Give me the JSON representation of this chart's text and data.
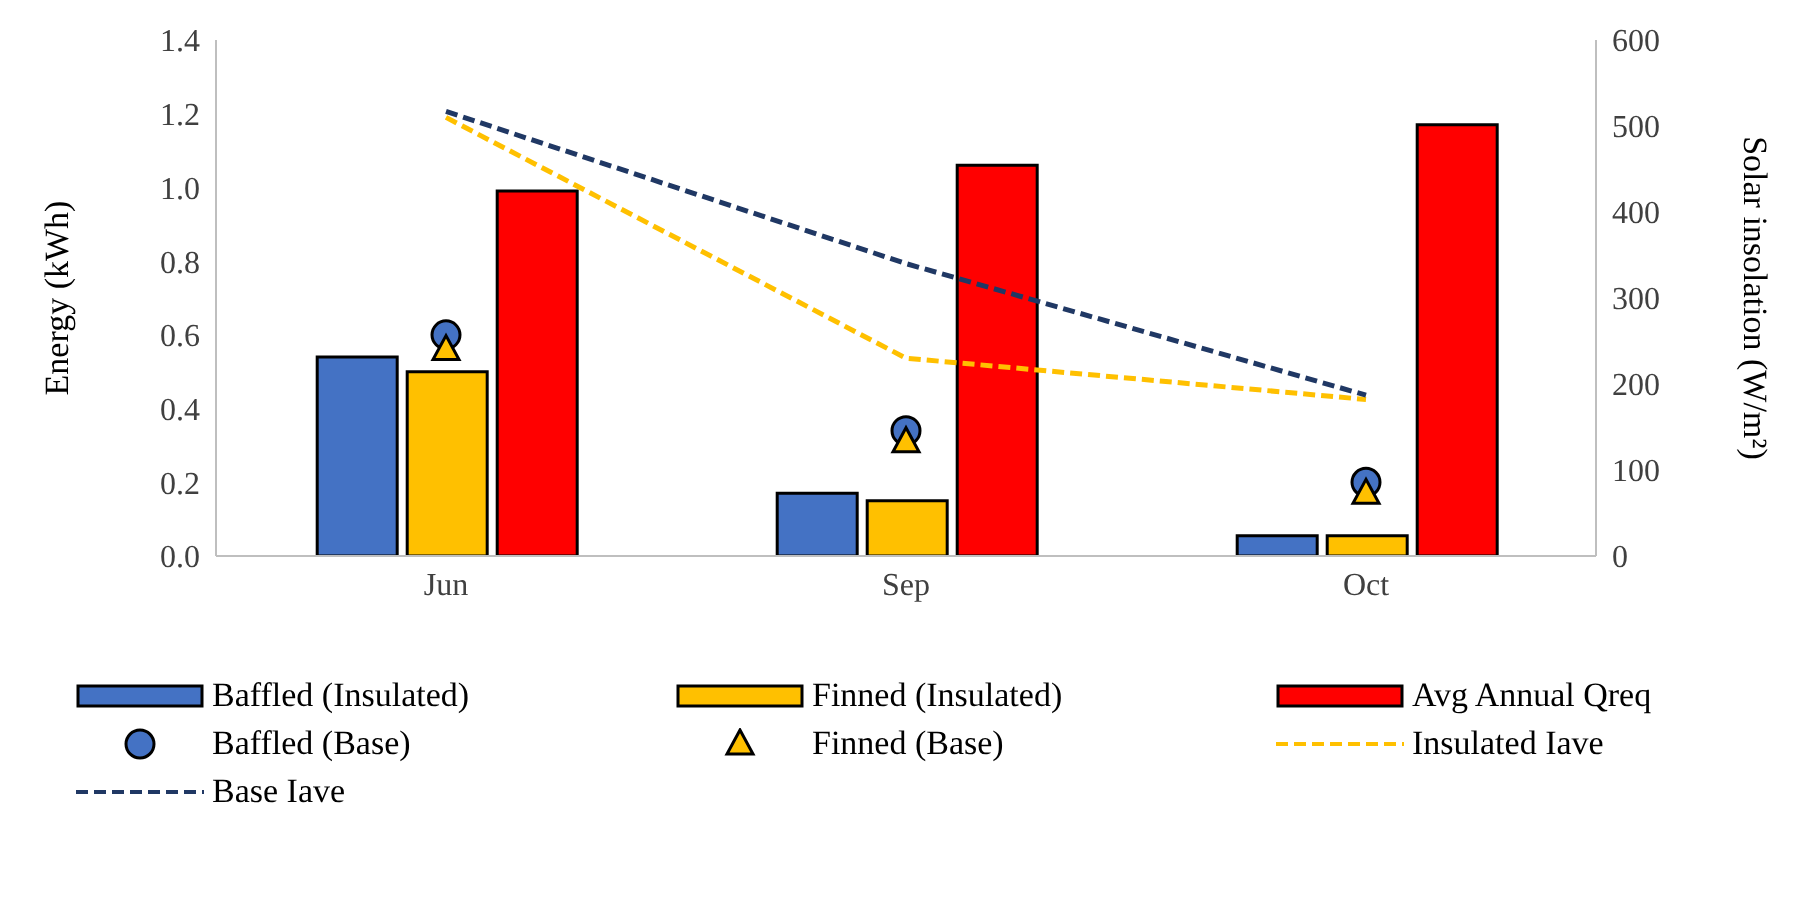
{
  "chart_data": {
    "type": "bar",
    "ylabel": "Energy  (kWh)",
    "y2label": "Solar insolation  (W/m²)",
    "categories": [
      "Jun",
      "Sep",
      "Oct"
    ],
    "series": [
      {
        "name": "Baffled (Insulated)",
        "color": "#4472c4",
        "values": [
          0.54,
          0.17,
          0.055
        ]
      },
      {
        "name": "Finned (Insulated)",
        "color": "#ffc000",
        "values": [
          0.5,
          0.15,
          0.055
        ]
      },
      {
        "name": "Avg Annual Qreq",
        "color": "#ff0000",
        "values": [
          0.99,
          1.06,
          1.17
        ]
      },
      {
        "name": "Baffled (Base)",
        "type": "scatter",
        "marker": "circle",
        "color": "#4472c4",
        "values": [
          0.6,
          0.34,
          0.2
        ]
      },
      {
        "name": "Finned (Base)",
        "type": "scatter",
        "marker": "triangle",
        "color": "#ffc000",
        "values": [
          0.56,
          0.31,
          0.17
        ]
      },
      {
        "name": "Insulated Iave",
        "type": "line",
        "axis": "y2",
        "line_style": "dashed",
        "color": "#ffc000",
        "values": [
          510,
          230,
          182
        ]
      },
      {
        "name": "Base Iave",
        "type": "line",
        "axis": "y2",
        "line_style": "dashed",
        "color": "#203864",
        "values": [
          517,
          340,
          187
        ]
      }
    ],
    "ylim": [
      0,
      1.4
    ],
    "yticks": [
      {
        "value": 0,
        "label": "0.0"
      },
      0.2,
      0.4,
      0.6,
      0.8,
      {
        "value": 1,
        "label": "1.0"
      },
      1.2,
      1.4
    ],
    "y2lim": [
      0,
      600
    ],
    "y2ticks": [
      0,
      100,
      200,
      300,
      400,
      500,
      600
    ],
    "legend": "bottom"
  }
}
